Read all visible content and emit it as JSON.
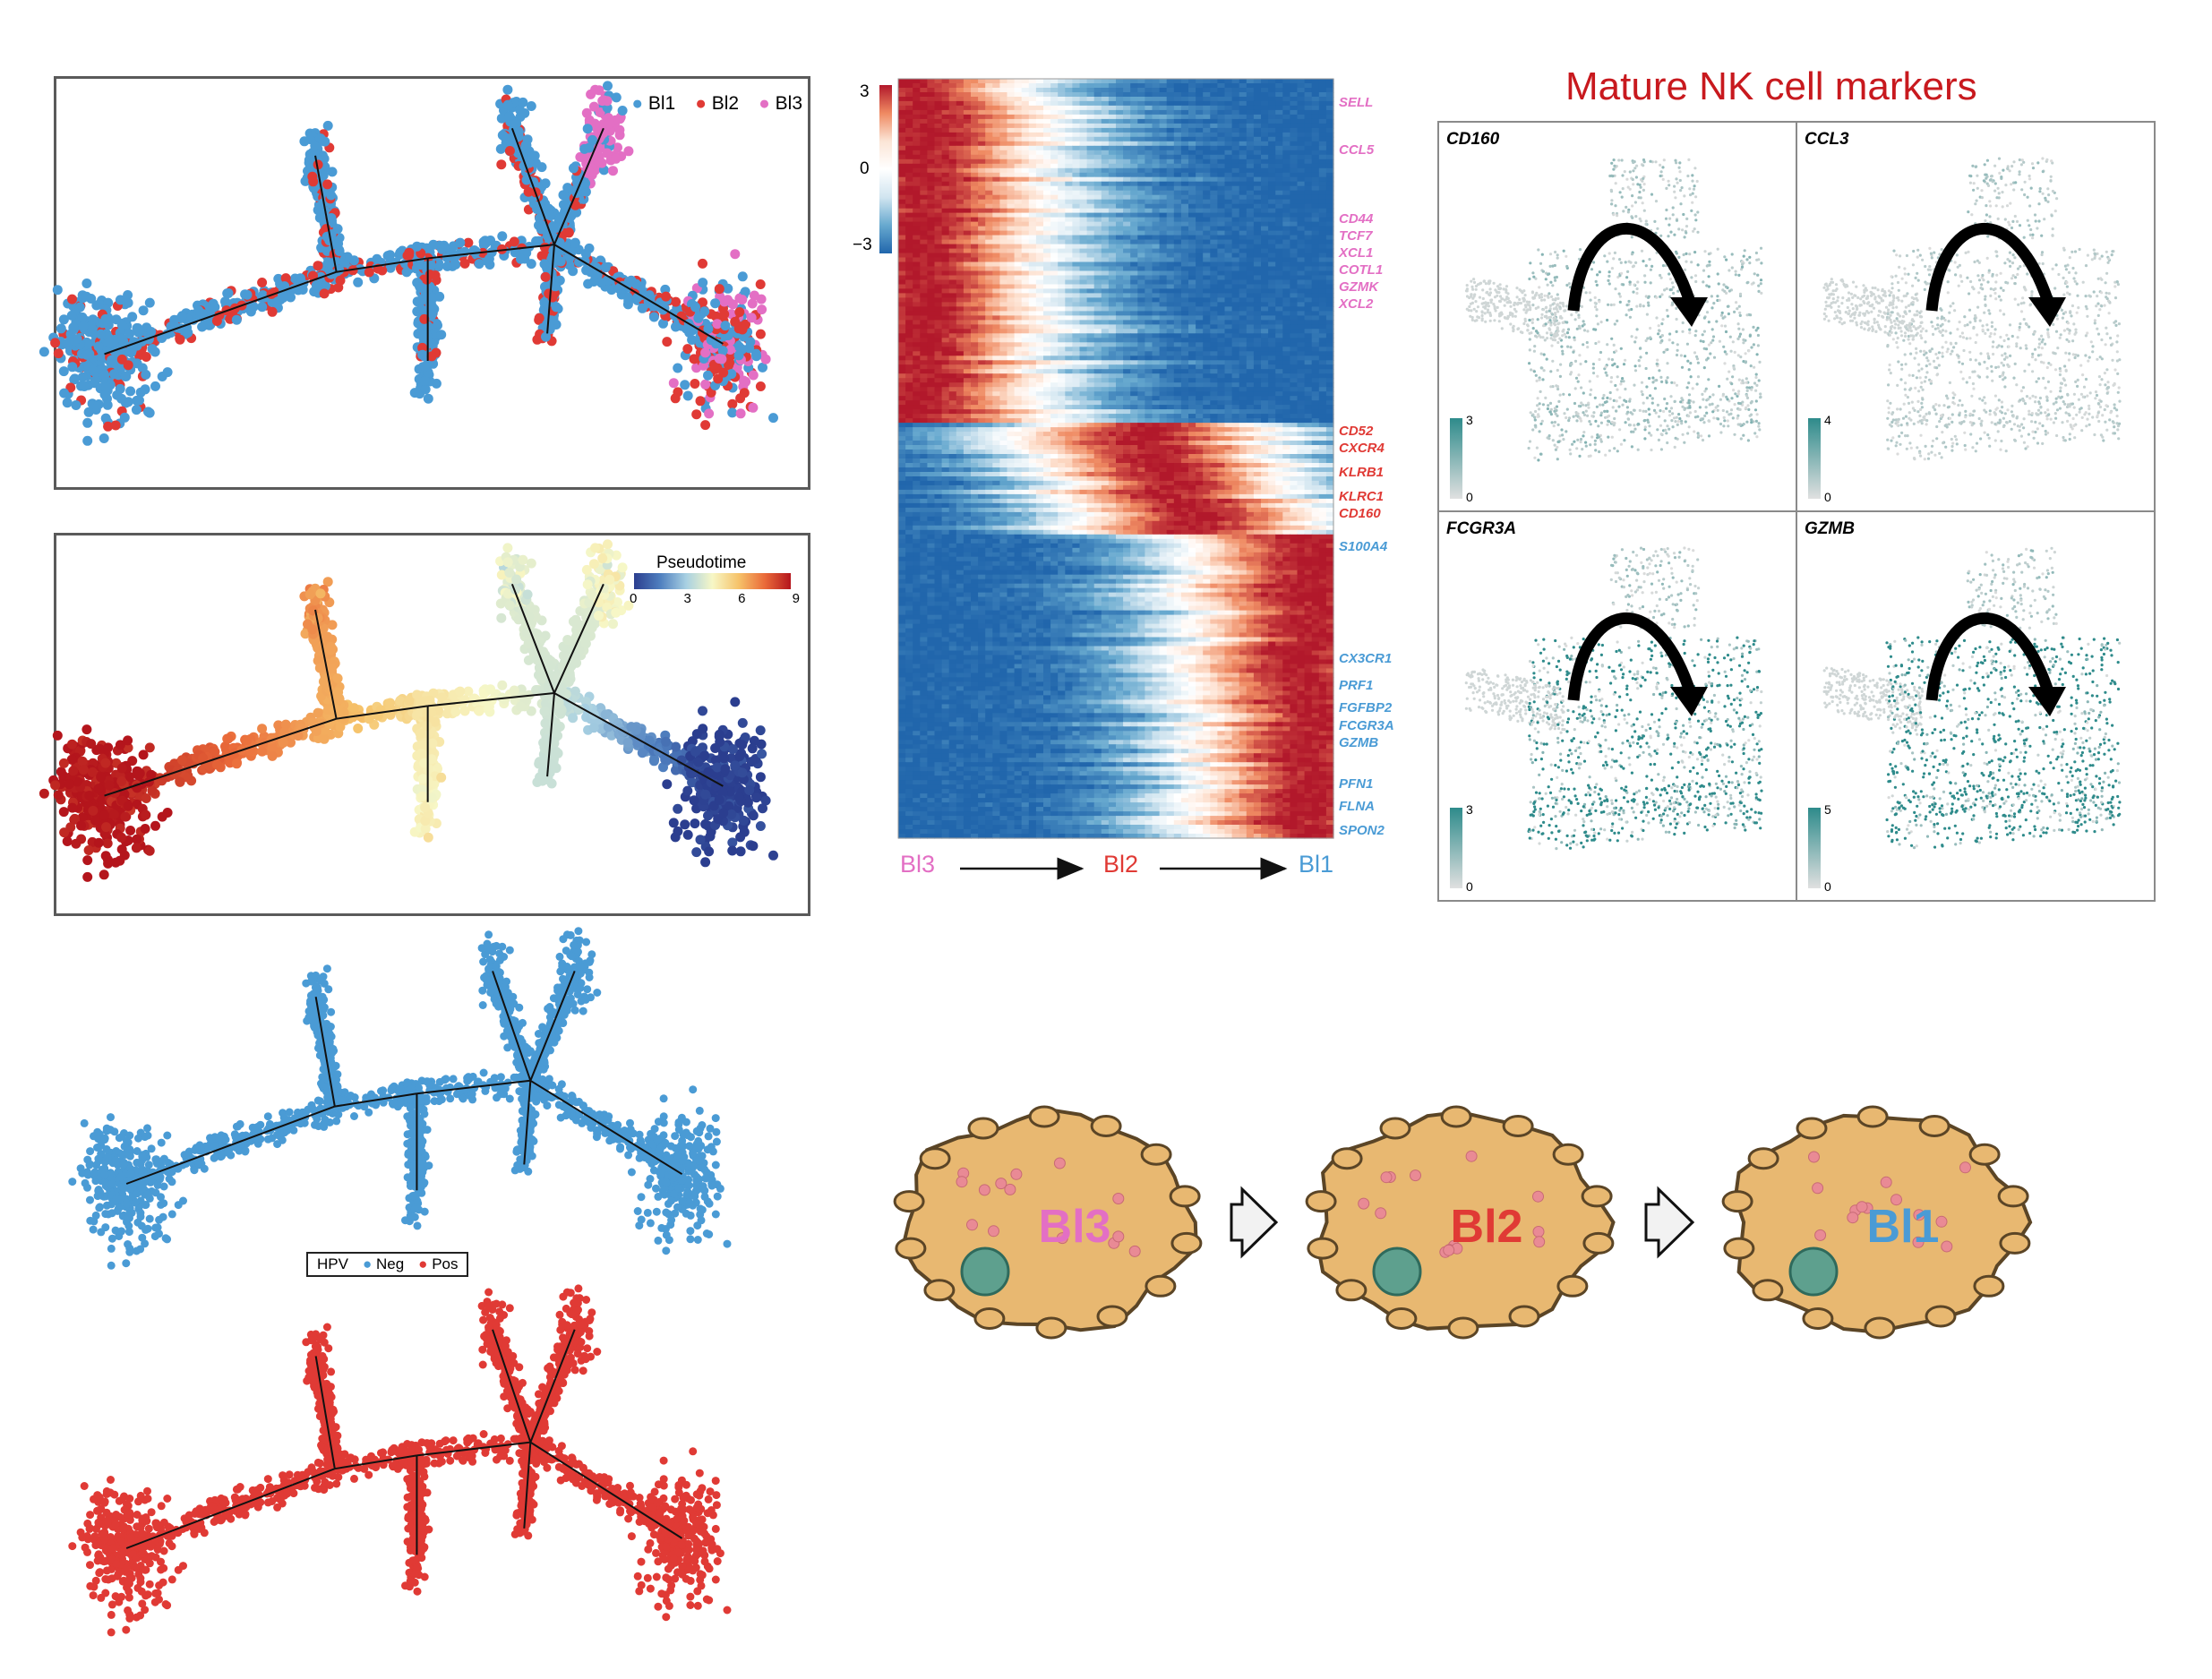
{
  "colors": {
    "bl1": "#4a9bd5",
    "bl2": "#e03a35",
    "bl3": "#e36fc4",
    "neg": "#4a9bd5",
    "pos": "#e03a35",
    "teal": "#2e8b8b",
    "title_red": "#c8191e",
    "cell_fill": "#e8b871",
    "cell_edge": "#5b4526"
  },
  "panel_a": {
    "legend": [
      {
        "label": "Bl1",
        "color": "#4a9bd5"
      },
      {
        "label": "Bl2",
        "color": "#e03a35"
      },
      {
        "label": "Bl3",
        "color": "#e36fc4"
      }
    ]
  },
  "panel_b": {
    "legend_title": "Pseudotime",
    "scale_ticks": [
      "0",
      "3",
      "6",
      "9"
    ]
  },
  "panel_hpv": {
    "legend_title": "HPV",
    "legend_items": [
      {
        "label": "Neg",
        "color": "#4a9bd5"
      },
      {
        "label": "Pos",
        "color": "#e03a35"
      }
    ]
  },
  "heatmap": {
    "scale_ticks": [
      "3",
      "0",
      "−3"
    ],
    "genes": [
      {
        "name": "SELL",
        "group": "bl3"
      },
      {
        "name": "CCL5",
        "group": "bl3"
      },
      {
        "name": "CD44",
        "group": "bl3"
      },
      {
        "name": "TCF7",
        "group": "bl3"
      },
      {
        "name": "XCL1",
        "group": "bl3"
      },
      {
        "name": "COTL1",
        "group": "bl3"
      },
      {
        "name": "GZMK",
        "group": "bl3"
      },
      {
        "name": "XCL2",
        "group": "bl3"
      },
      {
        "name": "CD52",
        "group": "bl2"
      },
      {
        "name": "CXCR4",
        "group": "bl2"
      },
      {
        "name": "KLRB1",
        "group": "bl2"
      },
      {
        "name": "KLRC1",
        "group": "bl2"
      },
      {
        "name": "CD160",
        "group": "bl2"
      },
      {
        "name": "S100A4",
        "group": "bl1"
      },
      {
        "name": "CX3CR1",
        "group": "bl1"
      },
      {
        "name": "PRF1",
        "group": "bl1"
      },
      {
        "name": "FGFBP2",
        "group": "bl1"
      },
      {
        "name": "FCGR3A",
        "group": "bl1"
      },
      {
        "name": "GZMB",
        "group": "bl1"
      },
      {
        "name": "PFN1",
        "group": "bl1"
      },
      {
        "name": "FLNA",
        "group": "bl1"
      },
      {
        "name": "SPON2",
        "group": "bl1"
      }
    ],
    "axis_labels": [
      "Bl3",
      "Bl2",
      "Bl1"
    ]
  },
  "markers": {
    "title": "Mature NK cell markers",
    "panels": [
      {
        "gene": "CD160",
        "scale_max": "3",
        "scale_min": "0"
      },
      {
        "gene": "CCL3",
        "scale_max": "4",
        "scale_min": "0"
      },
      {
        "gene": "FCGR3A",
        "scale_max": "3",
        "scale_min": "0"
      },
      {
        "gene": "GZMB",
        "scale_max": "5",
        "scale_min": "0"
      }
    ]
  },
  "cells": [
    {
      "label": "Bl3",
      "color": "#e36fc4"
    },
    {
      "label": "Bl2",
      "color": "#e03a35"
    },
    {
      "label": "Bl1",
      "color": "#4a9bd5"
    }
  ]
}
